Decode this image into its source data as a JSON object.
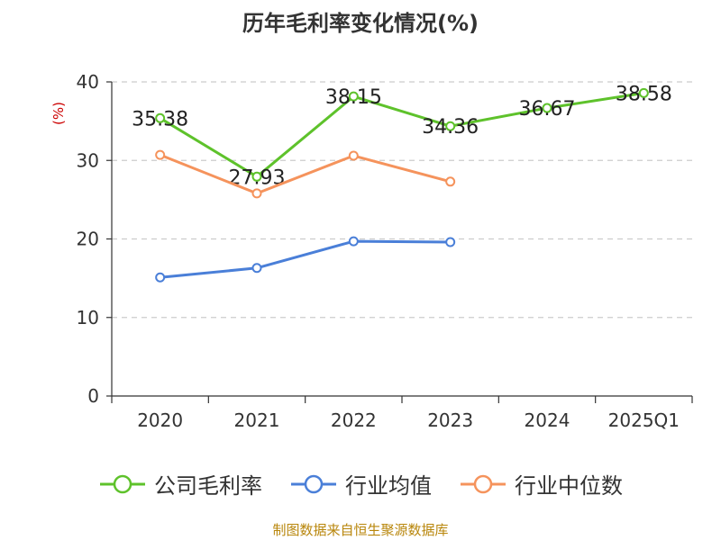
{
  "chart_data": {
    "type": "line",
    "title": "历年毛利率变化情况(%)",
    "ylabel": "(%)",
    "categories": [
      "2020",
      "2021",
      "2022",
      "2023",
      "2024",
      "2025Q1"
    ],
    "ylim": [
      0,
      40
    ],
    "yticks": [
      0,
      10,
      20,
      30,
      40
    ],
    "grid": true,
    "legend_position": "bottom",
    "series": [
      {
        "name": "公司毛利率",
        "color": "#5ec22b",
        "values": [
          35.38,
          27.93,
          38.15,
          34.36,
          36.67,
          38.58
        ],
        "show_labels": true
      },
      {
        "name": "行业均值",
        "color": "#4a7fd8",
        "values": [
          15.1,
          16.3,
          19.7,
          19.6,
          null,
          null
        ],
        "show_labels": false
      },
      {
        "name": "行业中位数",
        "color": "#f5935c",
        "values": [
          30.7,
          25.8,
          30.6,
          27.3,
          null,
          null
        ],
        "show_labels": false
      }
    ]
  },
  "source": "制图数据来自恒生聚源数据库",
  "ylabel_color": "#cc0000"
}
